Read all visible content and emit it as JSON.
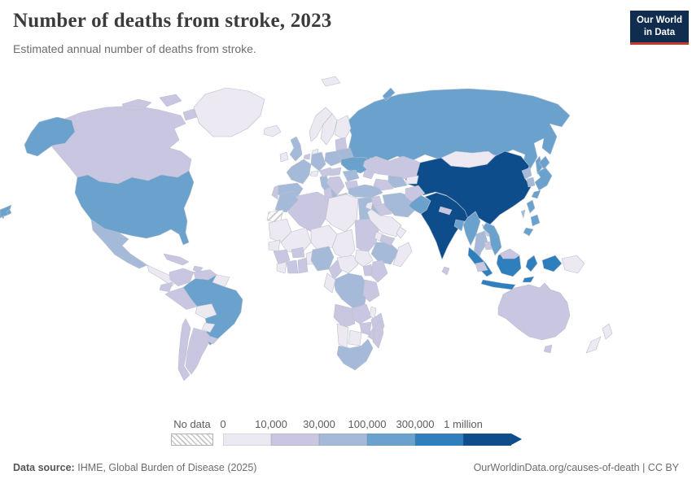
{
  "header": {
    "title": "Number of deaths from stroke, 2023",
    "subtitle": "Estimated annual number of deaths from stroke.",
    "logo": {
      "line1": "Our World",
      "line2": "in Data",
      "bg": "#102d50",
      "accent": "#c5392d"
    }
  },
  "chart_data": {
    "type": "choropleth_map",
    "title": "Number of deaths from stroke, 2023",
    "metric": "Estimated annual number of deaths from stroke",
    "year": "2023",
    "legend": {
      "no_data_label": "No data",
      "tick_labels": [
        "0",
        "10,000",
        "30,000",
        "100,000",
        "300,000",
        "1 million"
      ],
      "bin_ranges": [
        "0-10,000",
        "10,000-30,000",
        "30,000-100,000",
        "100,000-300,000",
        "300,000-1 million",
        "1 million+"
      ],
      "bin_colors": [
        "#ece9f3",
        "#c9c6e1",
        "#a5bad9",
        "#6aa2cd",
        "#2f7ebd",
        "#0d4d8c"
      ],
      "no_data_value": 0,
      "note": "country values below are bin indices 1-6 into bin_ranges; 0 = no data"
    },
    "countries": {
      "Russia": 4,
      "Canada": 2,
      "Greenland": 1,
      "United States": 4,
      "Mexico": 3,
      "Central America": 1,
      "Cuba": 2,
      "Haiti": 2,
      "Brazil": 4,
      "Colombia": 2,
      "Venezuela": 2,
      "Guyana": 1,
      "Ecuador": 2,
      "Peru": 2,
      "Bolivia": 1,
      "Paraguay": 1,
      "Argentina": 2,
      "Chile": 2,
      "Uruguay": 2,
      "Iceland": 1,
      "Ireland": 1,
      "United Kingdom": 3,
      "Norway": 1,
      "Sweden": 1,
      "Finland": 1,
      "Denmark": 1,
      "Netherlands": 2,
      "Germany": 3,
      "France": 3,
      "Spain": 3,
      "Portugal": 2,
      "Italy": 3,
      "Switzerland": 1,
      "Austria": 2,
      "Poland": 3,
      "Baltic States": 2,
      "Belarus": 3,
      "Ukraine": 4,
      "Romania": 3,
      "Hungary": 2,
      "Balkans": 2,
      "Greece": 2,
      "Bulgaria": 2,
      "Morocco": 3,
      "Western Sahara": 0,
      "Algeria": 2,
      "Tunisia": 2,
      "Libya": 1,
      "Egypt": 3,
      "Mauritania": 1,
      "Mali": 1,
      "Niger": 1,
      "Chad": 1,
      "Sudan": 2,
      "Eritrea": 1,
      "Ethiopia": 3,
      "Somalia": 1,
      "Senegal": 1,
      "Guinea": 2,
      "Sierra Leone": 1,
      "Cote d'Ivoire": 2,
      "Ghana": 2,
      "Burkina Faso": 2,
      "Benin": 1,
      "Nigeria": 3,
      "Cameroon": 2,
      "Central African Republic": 1,
      "South Sudan": 1,
      "Uganda": 2,
      "Kenya": 2,
      "DR Congo": 3,
      "Congo": 1,
      "Tanzania": 2,
      "Angola": 2,
      "Zambia": 2,
      "Malawi": 1,
      "Mozambique": 2,
      "Zimbabwe": 2,
      "Botswana": 1,
      "Namibia": 1,
      "South Africa": 3,
      "Madagascar": 2,
      "Kazakhstan": 2,
      "China": 6,
      "Mongolia": 1,
      "Caucasus": 2,
      "Turkey": 3,
      "Syria": 2,
      "Iraq": 2,
      "Iran": 3,
      "Saudi Arabia": 1,
      "Yemen": 2,
      "Oman": 1,
      "Jordan": 1,
      "Turkmenistan": 2,
      "Uzbekistan": 3,
      "Kyrgyzstan": 1,
      "Afghanistan": 2,
      "India": 6,
      "Pakistan": 4,
      "Nepal": 2,
      "Bangladesh": 4,
      "Sri Lanka": 2,
      "Myanmar": 4,
      "Thailand": 3,
      "Laos": 2,
      "Cambodia": 2,
      "Vietnam": 4,
      "Malaysia": 2,
      "Indonesia": 5,
      "Philippines": 4,
      "Taiwan": 3,
      "North Korea": 3,
      "South Korea": 3,
      "Japan": 4,
      "Papua New Guinea": 1,
      "Australia": 2,
      "New Zealand": 1
    }
  },
  "footer": {
    "source_label": "Data source:",
    "source": "IHME, Global Burden of Disease (2025)",
    "link": "OurWorldinData.org/causes-of-death | CC BY"
  }
}
